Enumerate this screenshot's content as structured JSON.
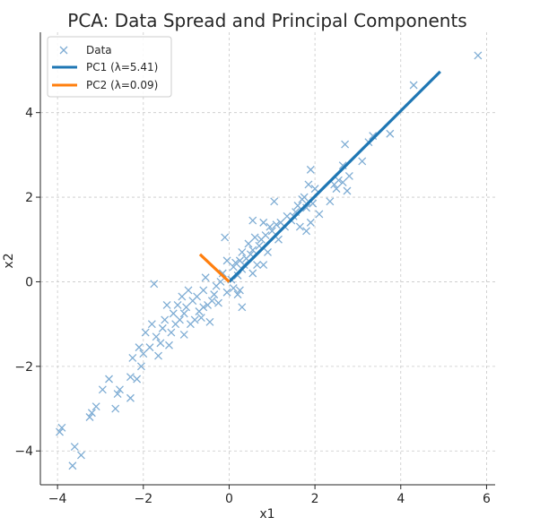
{
  "chart_data": {
    "type": "scatter",
    "title": "PCA: Data Spread and Principal Components",
    "xlabel": "x1",
    "ylabel": "x2",
    "xlim": [
      -4.4,
      6.2
    ],
    "ylim": [
      -4.8,
      5.9
    ],
    "x_ticks": [
      -4,
      -2,
      0,
      2,
      4,
      6
    ],
    "y_ticks": [
      -4,
      -2,
      0,
      2,
      4
    ],
    "x_tick_labels": [
      "−4",
      "−2",
      "0",
      "2",
      "4",
      "6"
    ],
    "y_tick_labels": [
      "−4",
      "−2",
      "0",
      "2",
      "4"
    ],
    "grid": true,
    "legend_position": "top-left",
    "colors": {
      "data": "#7fadd4",
      "pc1": "#1f77b4",
      "pc2": "#ff7f0e"
    },
    "series": [
      {
        "name": "Data",
        "kind": "points",
        "points": [
          [
            5.8,
            5.35
          ],
          [
            4.3,
            4.65
          ],
          [
            3.75,
            3.5
          ],
          [
            3.35,
            3.45
          ],
          [
            3.25,
            3.3
          ],
          [
            3.1,
            2.85
          ],
          [
            2.7,
            3.25
          ],
          [
            2.65,
            2.75
          ],
          [
            2.8,
            2.5
          ],
          [
            2.55,
            2.4
          ],
          [
            2.65,
            2.35
          ],
          [
            2.45,
            2.3
          ],
          [
            2.75,
            2.15
          ],
          [
            2.5,
            2.2
          ],
          [
            2.35,
            1.9
          ],
          [
            2.1,
            1.6
          ],
          [
            1.9,
            2.65
          ],
          [
            1.85,
            2.3
          ],
          [
            2.0,
            2.2
          ],
          [
            1.75,
            2.0
          ],
          [
            1.7,
            1.95
          ],
          [
            1.95,
            1.85
          ],
          [
            1.8,
            1.75
          ],
          [
            1.6,
            1.8
          ],
          [
            1.55,
            1.65
          ],
          [
            1.5,
            1.55
          ],
          [
            1.45,
            1.45
          ],
          [
            1.9,
            1.4
          ],
          [
            1.8,
            1.2
          ],
          [
            1.65,
            1.3
          ],
          [
            1.35,
            1.55
          ],
          [
            1.3,
            1.3
          ],
          [
            1.2,
            1.4
          ],
          [
            1.05,
            1.9
          ],
          [
            1.1,
            1.35
          ],
          [
            1.0,
            1.2
          ],
          [
            0.95,
            1.3
          ],
          [
            0.8,
            1.4
          ],
          [
            0.85,
            1.1
          ],
          [
            0.75,
            1.0
          ],
          [
            1.15,
            1.0
          ],
          [
            0.7,
            0.85
          ],
          [
            0.6,
            1.05
          ],
          [
            0.55,
            1.45
          ],
          [
            0.55,
            0.75
          ],
          [
            0.5,
            0.65
          ],
          [
            0.45,
            0.9
          ],
          [
            0.9,
            0.7
          ],
          [
            0.4,
            0.55
          ],
          [
            0.35,
            0.4
          ],
          [
            0.3,
            0.7
          ],
          [
            0.3,
            0.3
          ],
          [
            0.25,
            0.5
          ],
          [
            0.2,
            0.15
          ],
          [
            0.15,
            0.45
          ],
          [
            0.1,
            0.35
          ],
          [
            -0.05,
            0.5
          ],
          [
            -0.15,
            0.2
          ],
          [
            -0.1,
            1.05
          ],
          [
            -0.2,
            0.0
          ],
          [
            0.05,
            0.05
          ],
          [
            0.1,
            -0.15
          ],
          [
            -0.05,
            -0.25
          ],
          [
            0.2,
            -0.3
          ],
          [
            0.25,
            -0.2
          ],
          [
            0.3,
            -0.6
          ],
          [
            0.8,
            0.4
          ],
          [
            0.55,
            0.2
          ],
          [
            -0.3,
            -0.1
          ],
          [
            -0.35,
            -0.3
          ],
          [
            -0.4,
            -0.45
          ],
          [
            -0.5,
            -0.55
          ],
          [
            -0.55,
            0.1
          ],
          [
            -0.6,
            -0.6
          ],
          [
            -0.7,
            -0.7
          ],
          [
            -0.65,
            -0.85
          ],
          [
            -0.75,
            -0.35
          ],
          [
            -0.85,
            -0.45
          ],
          [
            -0.8,
            -0.9
          ],
          [
            -0.95,
            -0.2
          ],
          [
            -1.0,
            -0.6
          ],
          [
            -1.05,
            -0.75
          ],
          [
            -1.1,
            -0.35
          ],
          [
            -1.15,
            -0.9
          ],
          [
            -1.2,
            -0.55
          ],
          [
            -1.25,
            -1.0
          ],
          [
            -1.3,
            -0.75
          ],
          [
            -1.35,
            -1.2
          ],
          [
            -1.45,
            -0.55
          ],
          [
            -1.5,
            -0.9
          ],
          [
            -1.55,
            -1.1
          ],
          [
            -1.6,
            -1.45
          ],
          [
            -1.7,
            -1.3
          ],
          [
            -1.75,
            -0.05
          ],
          [
            -1.8,
            -1.0
          ],
          [
            -1.85,
            -1.55
          ],
          [
            -1.95,
            -1.2
          ],
          [
            -2.0,
            -1.7
          ],
          [
            -2.05,
            -2.0
          ],
          [
            -2.1,
            -1.55
          ],
          [
            -2.15,
            -2.3
          ],
          [
            -2.25,
            -1.8
          ],
          [
            -2.3,
            -2.25
          ],
          [
            -2.3,
            -2.75
          ],
          [
            -2.55,
            -2.55
          ],
          [
            -2.6,
            -2.65
          ],
          [
            -2.65,
            -3.0
          ],
          [
            -2.8,
            -2.3
          ],
          [
            -2.95,
            -2.55
          ],
          [
            -3.1,
            -2.95
          ],
          [
            -3.2,
            -3.1
          ],
          [
            -3.25,
            -3.2
          ],
          [
            -3.45,
            -4.1
          ],
          [
            -3.6,
            -3.9
          ],
          [
            -3.65,
            -4.35
          ],
          [
            -3.9,
            -3.45
          ],
          [
            -3.95,
            -3.55
          ],
          [
            -0.25,
            -0.5
          ],
          [
            -0.9,
            -1.0
          ],
          [
            -1.4,
            -1.5
          ],
          [
            -0.6,
            -0.2
          ],
          [
            -1.05,
            -1.25
          ],
          [
            -1.65,
            -1.75
          ],
          [
            -0.45,
            -0.95
          ],
          [
            0.65,
            0.4
          ]
        ]
      },
      {
        "name": "PC1 (λ=5.41)",
        "kind": "line",
        "x": [
          0.0,
          4.92
        ],
        "y": [
          0.0,
          4.97
        ]
      },
      {
        "name": "PC2 (λ=0.09)",
        "kind": "line",
        "x": [
          0.0,
          -0.68
        ],
        "y": [
          0.0,
          0.65
        ]
      }
    ]
  }
}
